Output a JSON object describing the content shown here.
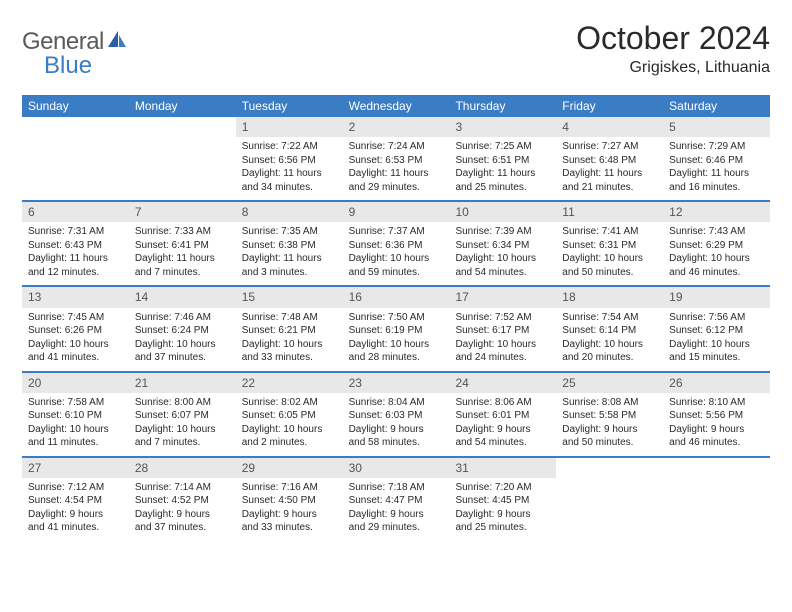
{
  "logo": {
    "general": "General",
    "blue": "Blue"
  },
  "title": "October 2024",
  "location": "Grigiskes, Lithuania",
  "colors": {
    "header_bg": "#3b7dc4",
    "header_text": "#ffffff",
    "daynum_bg": "#e8e8e8",
    "text": "#2a2a2a",
    "logo_gray": "#5a5a5a",
    "logo_blue": "#3b7dc4",
    "page_bg": "#ffffff"
  },
  "layout": {
    "columns": 7,
    "rows": 5,
    "cell_fontsize": 10,
    "daynum_fontsize": 12
  },
  "day_names": [
    "Sunday",
    "Monday",
    "Tuesday",
    "Wednesday",
    "Thursday",
    "Friday",
    "Saturday"
  ],
  "weeks": [
    [
      null,
      null,
      {
        "n": "1",
        "r": "Sunrise: 7:22 AM",
        "s": "Sunset: 6:56 PM",
        "d1": "Daylight: 11 hours",
        "d2": "and 34 minutes."
      },
      {
        "n": "2",
        "r": "Sunrise: 7:24 AM",
        "s": "Sunset: 6:53 PM",
        "d1": "Daylight: 11 hours",
        "d2": "and 29 minutes."
      },
      {
        "n": "3",
        "r": "Sunrise: 7:25 AM",
        "s": "Sunset: 6:51 PM",
        "d1": "Daylight: 11 hours",
        "d2": "and 25 minutes."
      },
      {
        "n": "4",
        "r": "Sunrise: 7:27 AM",
        "s": "Sunset: 6:48 PM",
        "d1": "Daylight: 11 hours",
        "d2": "and 21 minutes."
      },
      {
        "n": "5",
        "r": "Sunrise: 7:29 AM",
        "s": "Sunset: 6:46 PM",
        "d1": "Daylight: 11 hours",
        "d2": "and 16 minutes."
      }
    ],
    [
      {
        "n": "6",
        "r": "Sunrise: 7:31 AM",
        "s": "Sunset: 6:43 PM",
        "d1": "Daylight: 11 hours",
        "d2": "and 12 minutes."
      },
      {
        "n": "7",
        "r": "Sunrise: 7:33 AM",
        "s": "Sunset: 6:41 PM",
        "d1": "Daylight: 11 hours",
        "d2": "and 7 minutes."
      },
      {
        "n": "8",
        "r": "Sunrise: 7:35 AM",
        "s": "Sunset: 6:38 PM",
        "d1": "Daylight: 11 hours",
        "d2": "and 3 minutes."
      },
      {
        "n": "9",
        "r": "Sunrise: 7:37 AM",
        "s": "Sunset: 6:36 PM",
        "d1": "Daylight: 10 hours",
        "d2": "and 59 minutes."
      },
      {
        "n": "10",
        "r": "Sunrise: 7:39 AM",
        "s": "Sunset: 6:34 PM",
        "d1": "Daylight: 10 hours",
        "d2": "and 54 minutes."
      },
      {
        "n": "11",
        "r": "Sunrise: 7:41 AM",
        "s": "Sunset: 6:31 PM",
        "d1": "Daylight: 10 hours",
        "d2": "and 50 minutes."
      },
      {
        "n": "12",
        "r": "Sunrise: 7:43 AM",
        "s": "Sunset: 6:29 PM",
        "d1": "Daylight: 10 hours",
        "d2": "and 46 minutes."
      }
    ],
    [
      {
        "n": "13",
        "r": "Sunrise: 7:45 AM",
        "s": "Sunset: 6:26 PM",
        "d1": "Daylight: 10 hours",
        "d2": "and 41 minutes."
      },
      {
        "n": "14",
        "r": "Sunrise: 7:46 AM",
        "s": "Sunset: 6:24 PM",
        "d1": "Daylight: 10 hours",
        "d2": "and 37 minutes."
      },
      {
        "n": "15",
        "r": "Sunrise: 7:48 AM",
        "s": "Sunset: 6:21 PM",
        "d1": "Daylight: 10 hours",
        "d2": "and 33 minutes."
      },
      {
        "n": "16",
        "r": "Sunrise: 7:50 AM",
        "s": "Sunset: 6:19 PM",
        "d1": "Daylight: 10 hours",
        "d2": "and 28 minutes."
      },
      {
        "n": "17",
        "r": "Sunrise: 7:52 AM",
        "s": "Sunset: 6:17 PM",
        "d1": "Daylight: 10 hours",
        "d2": "and 24 minutes."
      },
      {
        "n": "18",
        "r": "Sunrise: 7:54 AM",
        "s": "Sunset: 6:14 PM",
        "d1": "Daylight: 10 hours",
        "d2": "and 20 minutes."
      },
      {
        "n": "19",
        "r": "Sunrise: 7:56 AM",
        "s": "Sunset: 6:12 PM",
        "d1": "Daylight: 10 hours",
        "d2": "and 15 minutes."
      }
    ],
    [
      {
        "n": "20",
        "r": "Sunrise: 7:58 AM",
        "s": "Sunset: 6:10 PM",
        "d1": "Daylight: 10 hours",
        "d2": "and 11 minutes."
      },
      {
        "n": "21",
        "r": "Sunrise: 8:00 AM",
        "s": "Sunset: 6:07 PM",
        "d1": "Daylight: 10 hours",
        "d2": "and 7 minutes."
      },
      {
        "n": "22",
        "r": "Sunrise: 8:02 AM",
        "s": "Sunset: 6:05 PM",
        "d1": "Daylight: 10 hours",
        "d2": "and 2 minutes."
      },
      {
        "n": "23",
        "r": "Sunrise: 8:04 AM",
        "s": "Sunset: 6:03 PM",
        "d1": "Daylight: 9 hours",
        "d2": "and 58 minutes."
      },
      {
        "n": "24",
        "r": "Sunrise: 8:06 AM",
        "s": "Sunset: 6:01 PM",
        "d1": "Daylight: 9 hours",
        "d2": "and 54 minutes."
      },
      {
        "n": "25",
        "r": "Sunrise: 8:08 AM",
        "s": "Sunset: 5:58 PM",
        "d1": "Daylight: 9 hours",
        "d2": "and 50 minutes."
      },
      {
        "n": "26",
        "r": "Sunrise: 8:10 AM",
        "s": "Sunset: 5:56 PM",
        "d1": "Daylight: 9 hours",
        "d2": "and 46 minutes."
      }
    ],
    [
      {
        "n": "27",
        "r": "Sunrise: 7:12 AM",
        "s": "Sunset: 4:54 PM",
        "d1": "Daylight: 9 hours",
        "d2": "and 41 minutes."
      },
      {
        "n": "28",
        "r": "Sunrise: 7:14 AM",
        "s": "Sunset: 4:52 PM",
        "d1": "Daylight: 9 hours",
        "d2": "and 37 minutes."
      },
      {
        "n": "29",
        "r": "Sunrise: 7:16 AM",
        "s": "Sunset: 4:50 PM",
        "d1": "Daylight: 9 hours",
        "d2": "and 33 minutes."
      },
      {
        "n": "30",
        "r": "Sunrise: 7:18 AM",
        "s": "Sunset: 4:47 PM",
        "d1": "Daylight: 9 hours",
        "d2": "and 29 minutes."
      },
      {
        "n": "31",
        "r": "Sunrise: 7:20 AM",
        "s": "Sunset: 4:45 PM",
        "d1": "Daylight: 9 hours",
        "d2": "and 25 minutes."
      },
      null,
      null
    ]
  ]
}
